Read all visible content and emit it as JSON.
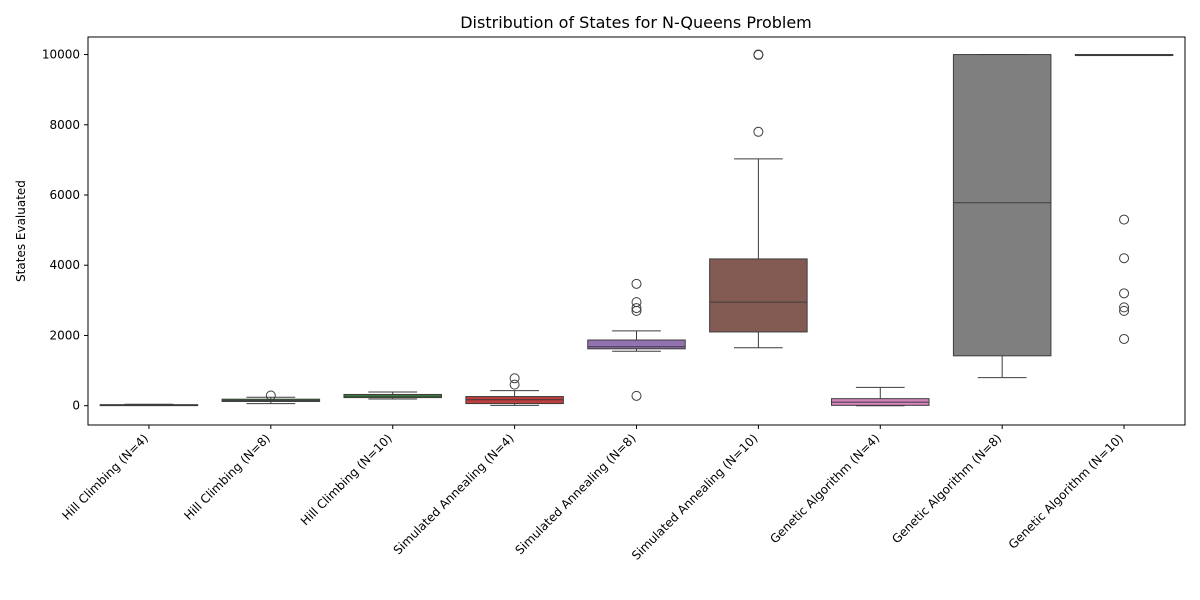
{
  "chart_data": {
    "type": "box",
    "title": "Distribution of States for N-Queens Problem",
    "xlabel": "",
    "ylabel": "States Evaluated",
    "ylim": [
      -550,
      10500
    ],
    "yticks": [
      0,
      2000,
      4000,
      6000,
      8000,
      10000
    ],
    "grid": false,
    "categories": [
      "Hill Climbing (N=4)",
      "Hill Climbing (N=8)",
      "Hill Climbing (N=10)",
      "Simulated Annealing (N=4)",
      "Simulated Annealing (N=8)",
      "Simulated Annealing (N=10)",
      "Genetic Algorithm (N=4)",
      "Genetic Algorithm (N=8)",
      "Genetic Algorithm (N=10)"
    ],
    "boxes": [
      {
        "whisker_low": 5,
        "q1": 10,
        "median": 20,
        "q3": 30,
        "whisker_high": 40,
        "outliers": [],
        "color": "#3274a1"
      },
      {
        "whisker_low": 60,
        "q1": 120,
        "median": 150,
        "q3": 185,
        "whisker_high": 240,
        "outliers": [
          290
        ],
        "color": "#3a923a"
      },
      {
        "whisker_low": 190,
        "q1": 230,
        "median": 270,
        "q3": 320,
        "whisker_high": 390,
        "outliers": [],
        "color": "#3a923a"
      },
      {
        "whisker_low": 10,
        "q1": 60,
        "median": 170,
        "q3": 260,
        "whisker_high": 430,
        "outliers": [
          600,
          780
        ],
        "color": "#c03d3e"
      },
      {
        "whisker_low": 1550,
        "q1": 1620,
        "median": 1680,
        "q3": 1870,
        "whisker_high": 2130,
        "outliers": [
          280,
          2700,
          2780,
          2950,
          3470
        ],
        "color": "#9372b2"
      },
      {
        "whisker_low": 1650,
        "q1": 2100,
        "median": 2950,
        "q3": 4180,
        "whisker_high": 7030,
        "outliers": [
          7800,
          9990,
          10000
        ],
        "color": "#845b53"
      },
      {
        "whisker_low": 0,
        "q1": 10,
        "median": 100,
        "q3": 200,
        "whisker_high": 520,
        "outliers": [],
        "color": "#d684bd"
      },
      {
        "whisker_low": 800,
        "q1": 1420,
        "median": 5780,
        "q3": 10000,
        "whisker_high": 10000,
        "outliers": [],
        "color": "#7f7f7f"
      },
      {
        "whisker_low": 10000,
        "q1": 10000,
        "median": 10000,
        "q3": 10000,
        "whisker_high": 10000,
        "outliers": [
          1900,
          2700,
          2800,
          3200,
          4200,
          5300
        ],
        "color": "#a9aa35"
      }
    ]
  }
}
